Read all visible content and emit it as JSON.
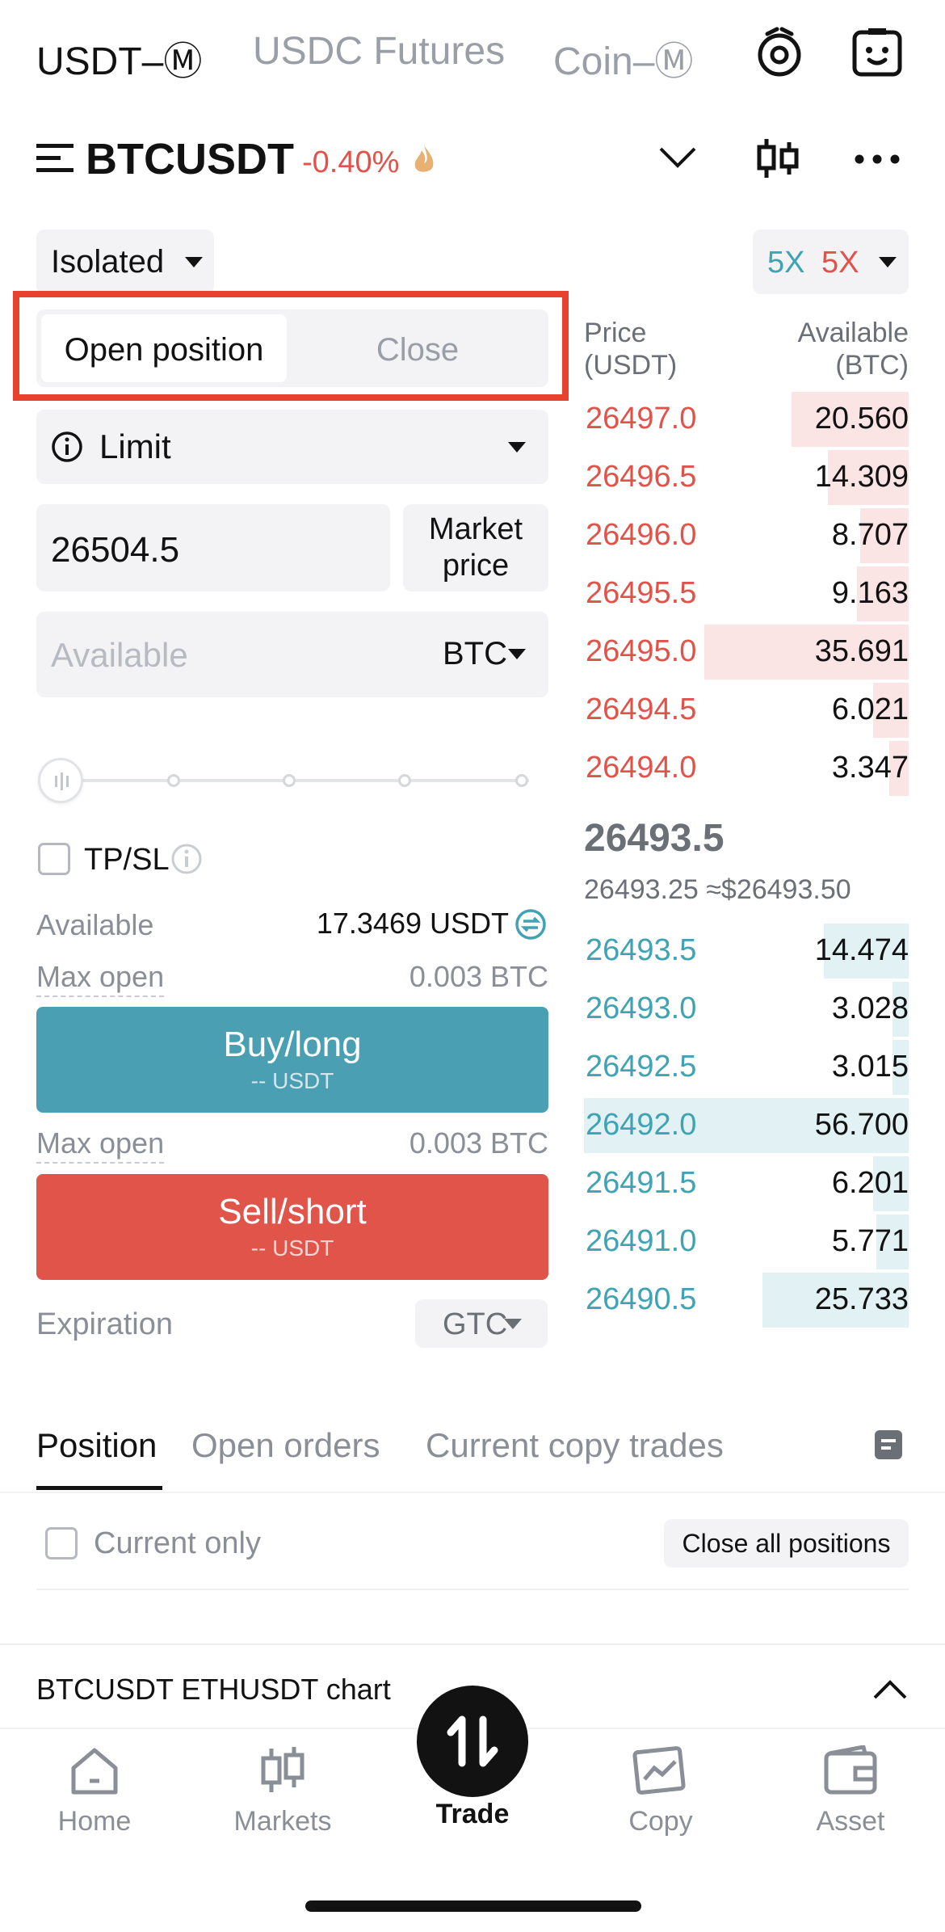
{
  "market_tabs": [
    {
      "label": "USDT–Ⓜ",
      "active": true
    },
    {
      "label": "USDC Futures",
      "active": false
    },
    {
      "label": "Coin–Ⓜ",
      "active": false
    }
  ],
  "pair": {
    "symbol": "BTCUSDT",
    "change": "-0.40%"
  },
  "margin_mode": {
    "label": "Isolated"
  },
  "leverage": {
    "long": "5X",
    "short": "5X"
  },
  "position_tabs": {
    "open": "Open position",
    "close": "Close"
  },
  "order_type": {
    "label": "Limit"
  },
  "price_input": {
    "value": "26504.5"
  },
  "market_price_button": {
    "line1": "Market",
    "line2": "price"
  },
  "quantity_input": {
    "placeholder": "Available",
    "unit": "BTC"
  },
  "slider": {
    "value_percent": 0
  },
  "tpsl": {
    "label": "TP/SL"
  },
  "available": {
    "label": "Available",
    "value": "17.3469 USDT"
  },
  "max_open_long": {
    "label": "Max open",
    "value": "0.003 BTC"
  },
  "max_open_short": {
    "label": "Max open",
    "value": "0.003 BTC"
  },
  "buy_button": {
    "label": "Buy/long",
    "sub": "-- USDT"
  },
  "sell_button": {
    "label": "Sell/short",
    "sub": "-- USDT"
  },
  "expiration": {
    "label": "Expiration",
    "value": "GTC"
  },
  "orderbook": {
    "price_header": "Price",
    "price_unit": "(USDT)",
    "amount_header": "Available",
    "amount_unit": "(BTC)",
    "asks": [
      {
        "price": "26497.0",
        "amount": "20.560",
        "depth": 0.36
      },
      {
        "price": "26496.5",
        "amount": "14.309",
        "depth": 0.25
      },
      {
        "price": "26496.0",
        "amount": "8.707",
        "depth": 0.15
      },
      {
        "price": "26495.5",
        "amount": "9.163",
        "depth": 0.16
      },
      {
        "price": "26495.0",
        "amount": "35.691",
        "depth": 0.63
      },
      {
        "price": "26494.5",
        "amount": "6.021",
        "depth": 0.11
      },
      {
        "price": "26494.0",
        "amount": "3.347",
        "depth": 0.06
      }
    ],
    "last_price": "26493.5",
    "mark_price": "26493.25 ≈$26493.50",
    "bids": [
      {
        "price": "26493.5",
        "amount": "14.474",
        "depth": 0.26
      },
      {
        "price": "26493.0",
        "amount": "3.028",
        "depth": 0.05
      },
      {
        "price": "26492.5",
        "amount": "3.015",
        "depth": 0.05
      },
      {
        "price": "26492.0",
        "amount": "56.700",
        "depth": 1.0
      },
      {
        "price": "26491.5",
        "amount": "6.201",
        "depth": 0.11
      },
      {
        "price": "26491.0",
        "amount": "5.771",
        "depth": 0.1
      },
      {
        "price": "26490.5",
        "amount": "25.733",
        "depth": 0.45
      }
    ]
  },
  "bottom_tabs": [
    {
      "label": "Position",
      "active": true
    },
    {
      "label": "Open orders",
      "active": false
    },
    {
      "label": "Current copy trades",
      "active": false
    }
  ],
  "current_only": {
    "label": "Current only"
  },
  "close_all": {
    "label": "Close all positions"
  },
  "chart_bar": {
    "label": "BTCUSDT  ETHUSDT chart"
  },
  "nav": [
    {
      "label": "Home",
      "icon": "home-icon"
    },
    {
      "label": "Markets",
      "icon": "markets-icon"
    },
    {
      "label": "Trade",
      "icon": "trade-icon",
      "active": true
    },
    {
      "label": "Copy",
      "icon": "copy-icon"
    },
    {
      "label": "Asset",
      "icon": "asset-icon"
    }
  ],
  "colors": {
    "red": "#e0534a",
    "teal": "#4b9fb3",
    "highlight": "#e8422e"
  }
}
